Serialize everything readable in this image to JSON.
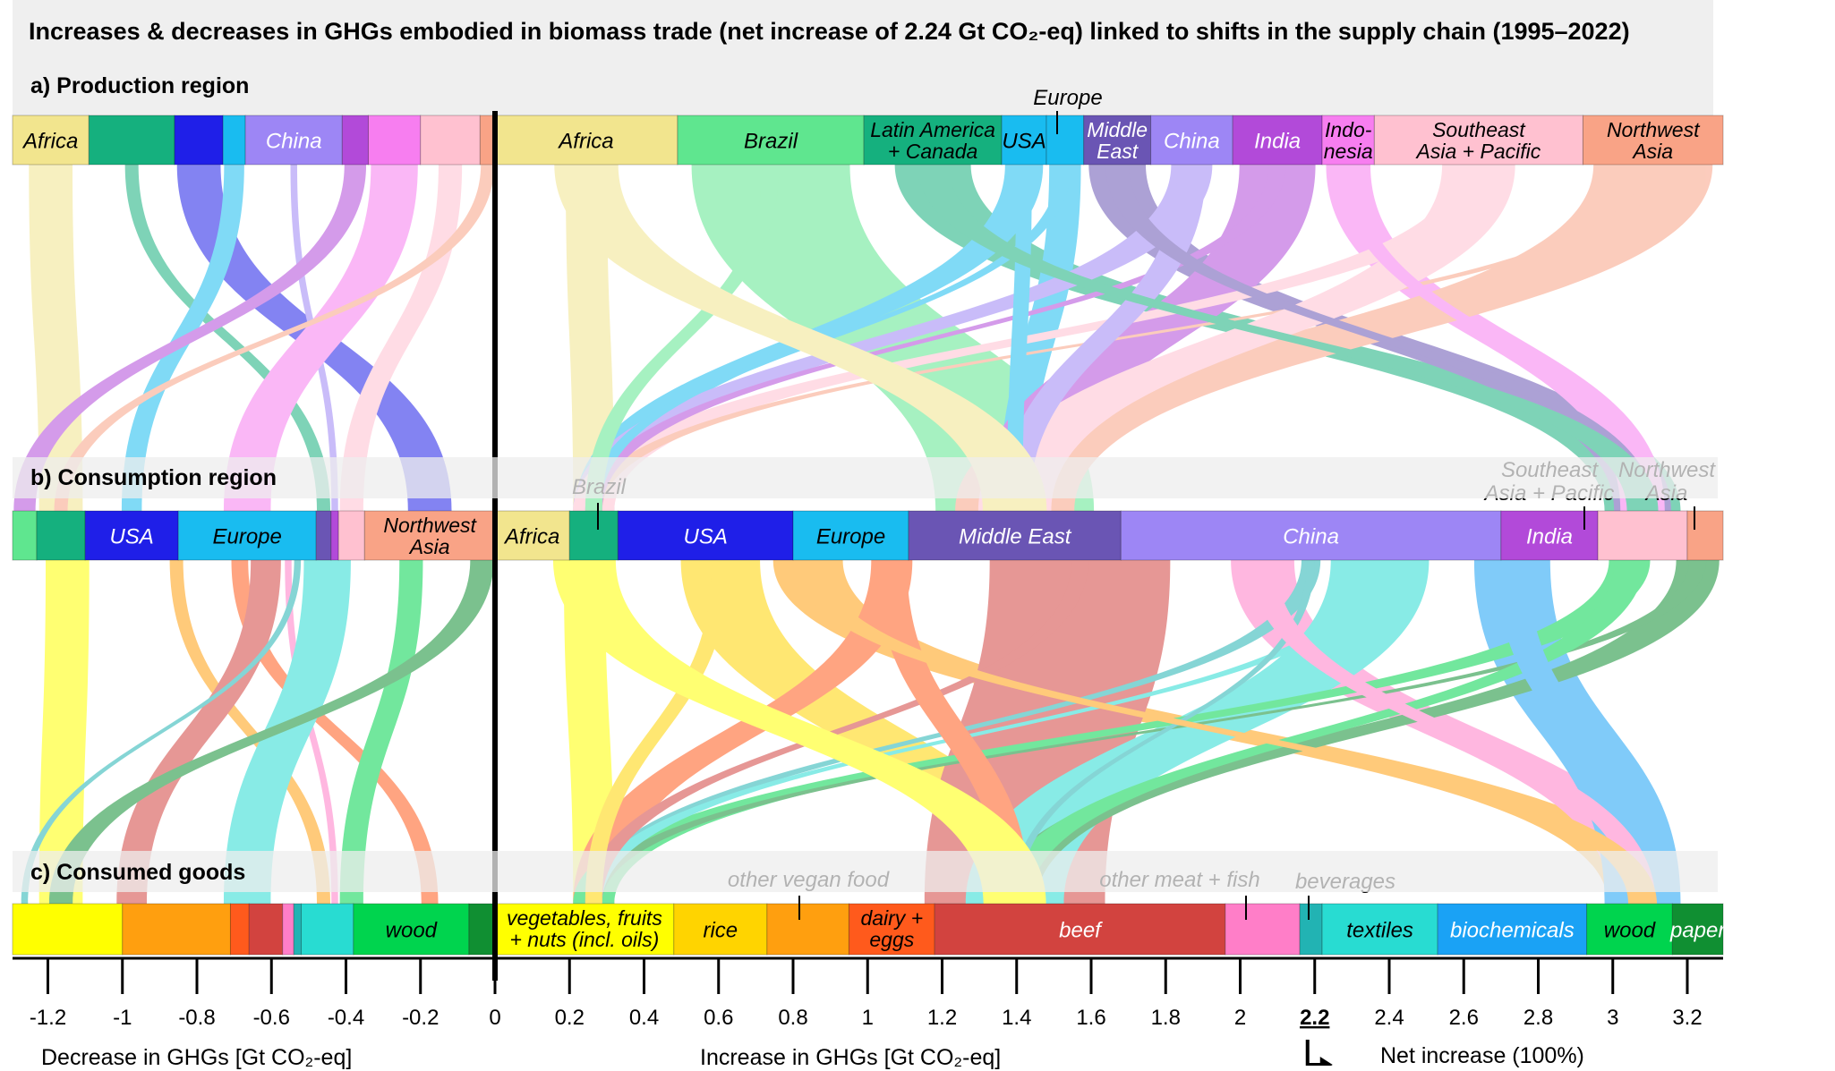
{
  "title": "Increases & decreases in GHGs embodied in biomass trade (net increase of 2.24 Gt CO₂-eq) linked to shifts in the supply chain (1995–2022)",
  "sections": {
    "a": "a) Production region",
    "b": "b) Consumption region",
    "c": "c) Consumed goods"
  },
  "axis": {
    "xlabel_left": "Decrease in GHGs [Gt CO₂-eq]",
    "xlabel_right": "Increase in GHGs [Gt CO₂-eq]",
    "net_label": "Net increase (100%)",
    "net_value": "2.2",
    "ticks": [
      "-1.2",
      "-1",
      "-0.8",
      "-0.6",
      "-0.4",
      "-0.2",
      "0",
      "0.2",
      "0.4",
      "0.6",
      "0.8",
      "1",
      "1.2",
      "1.4",
      "1.6",
      "1.8",
      "2",
      "2.2",
      "2.4",
      "2.6",
      "2.8",
      "3",
      "3.2"
    ],
    "tick_values": [
      -1.2,
      -1.0,
      -0.8,
      -0.6,
      -0.4,
      -0.2,
      0,
      0.2,
      0.4,
      0.6,
      0.8,
      1.0,
      1.2,
      1.4,
      1.6,
      1.8,
      2.0,
      2.2,
      2.4,
      2.6,
      2.8,
      3.0,
      3.2
    ],
    "range": [
      -1.3,
      3.33
    ]
  },
  "chart_data": {
    "type": "sankey",
    "title": "Increases & decreases in GHGs embodied in biomass trade (net increase of 2.24 Gt CO₂-eq) linked to shifts in the supply chain (1995–2022)",
    "units": "Gt CO₂-eq",
    "net_increase": 2.24,
    "production": {
      "decrease": [
        {
          "label": "Africa",
          "start": -1.3,
          "end": -1.09,
          "color": "#f2e58e"
        },
        {
          "label": "",
          "start": -1.09,
          "end": -0.86,
          "color": "#15b07e"
        },
        {
          "label": "",
          "start": -0.86,
          "end": -0.73,
          "color": "#1f1fe8"
        },
        {
          "label": "",
          "start": -0.73,
          "end": -0.67,
          "color": "#19bcf0"
        },
        {
          "label": "China",
          "start": -0.67,
          "end": -0.41,
          "color": "#9d86f5"
        },
        {
          "label": "",
          "start": -0.41,
          "end": -0.34,
          "color": "#b24ad9"
        },
        {
          "label": "",
          "start": -0.34,
          "end": -0.2,
          "color": "#f77ef0"
        },
        {
          "label": "",
          "start": -0.2,
          "end": -0.04,
          "color": "#ffc1d0"
        },
        {
          "label": "",
          "start": -0.04,
          "end": 0,
          "color": "#f9a386"
        }
      ],
      "increase": [
        {
          "label": "Africa",
          "start": 0,
          "end": 0.49,
          "color": "#f2e58e"
        },
        {
          "label": "Brazil",
          "start": 0.49,
          "end": 0.99,
          "color": "#5fe68f"
        },
        {
          "label": "Latin America + Canada",
          "start": 0.99,
          "end": 1.36,
          "color": "#15b07e"
        },
        {
          "label": "USA",
          "start": 1.36,
          "end": 1.48,
          "color": "#19bcf0"
        },
        {
          "label": "Europe",
          "start": 1.48,
          "end": 1.58,
          "color": "#19bcf0"
        },
        {
          "label": "Middle East",
          "start": 1.58,
          "end": 1.76,
          "color": "#6a55b4"
        },
        {
          "label": "China",
          "start": 1.76,
          "end": 1.98,
          "color": "#9d86f5"
        },
        {
          "label": "India",
          "start": 1.98,
          "end": 2.22,
          "color": "#b24ad9"
        },
        {
          "label": "Indo-nesia",
          "start": 2.22,
          "end": 2.36,
          "color": "#f77ef0"
        },
        {
          "label": "Southeast Asia + Pacific",
          "start": 2.36,
          "end": 2.92,
          "color": "#ffc1d0"
        },
        {
          "label": "Northwest Asia",
          "start": 2.92,
          "end": 3.33,
          "color": "#f9a386"
        }
      ]
    },
    "consumption": {
      "decrease": [
        {
          "label": "",
          "start": -1.3,
          "end": -1.23,
          "color": "#5fe68f"
        },
        {
          "label": "",
          "start": -1.23,
          "end": -1.1,
          "color": "#15b07e"
        },
        {
          "label": "USA",
          "start": -1.1,
          "end": -0.85,
          "color": "#1f1fe8"
        },
        {
          "label": "Europe",
          "start": -0.85,
          "end": -0.48,
          "color": "#19bcf0"
        },
        {
          "label": "",
          "start": -0.48,
          "end": -0.44,
          "color": "#6a55b4"
        },
        {
          "label": "",
          "start": -0.44,
          "end": -0.42,
          "color": "#b24ad9"
        },
        {
          "label": "",
          "start": -0.42,
          "end": -0.35,
          "color": "#ffc1d0"
        },
        {
          "label": "Northwest Asia",
          "start": -0.35,
          "end": 0,
          "color": "#f9a386"
        }
      ],
      "increase": [
        {
          "label": "Africa",
          "start": 0,
          "end": 0.2,
          "color": "#f2e58e"
        },
        {
          "label": "Brazil",
          "start": 0.2,
          "end": 0.33,
          "color": "#15b07e"
        },
        {
          "label": "USA",
          "start": 0.33,
          "end": 0.8,
          "color": "#1f1fe8"
        },
        {
          "label": "Europe",
          "start": 0.8,
          "end": 1.11,
          "color": "#19bcf0"
        },
        {
          "label": "Middle East",
          "start": 1.11,
          "end": 1.68,
          "color": "#6a55b4"
        },
        {
          "label": "China",
          "start": 1.68,
          "end": 2.7,
          "color": "#9d86f5"
        },
        {
          "label": "India",
          "start": 2.7,
          "end": 2.96,
          "color": "#b24ad9"
        },
        {
          "label": "Southeast Asia + Pacific",
          "start": 2.96,
          "end": 3.2,
          "color": "#ffc1d0"
        },
        {
          "label": "Northwest Asia",
          "start": 3.2,
          "end": 3.33,
          "color": "#f9a386"
        }
      ]
    },
    "goods": {
      "decrease": [
        {
          "label": "",
          "start": -1.3,
          "end": -1.0,
          "color": "#ffff00"
        },
        {
          "label": "",
          "start": -1.0,
          "end": -0.71,
          "color": "#ff9f0f"
        },
        {
          "label": "",
          "start": -0.71,
          "end": -0.66,
          "color": "#ff5a1c"
        },
        {
          "label": "",
          "start": -0.66,
          "end": -0.57,
          "color": "#d2433f"
        },
        {
          "label": "",
          "start": -0.57,
          "end": -0.54,
          "color": "#ff7ec8"
        },
        {
          "label": "",
          "start": -0.54,
          "end": -0.52,
          "color": "#22b3b3"
        },
        {
          "label": "",
          "start": -0.52,
          "end": -0.38,
          "color": "#28dcd2"
        },
        {
          "label": "wood",
          "start": -0.38,
          "end": -0.07,
          "color": "#00d44e"
        },
        {
          "label": "",
          "start": -0.07,
          "end": 0,
          "color": "#108f32"
        }
      ],
      "increase": [
        {
          "label": "vegetables, fruits + nuts (incl. oils)",
          "start": 0,
          "end": 0.48,
          "color": "#ffff00"
        },
        {
          "label": "rice",
          "start": 0.48,
          "end": 0.73,
          "color": "#ffd400"
        },
        {
          "label": "other vegan food",
          "start": 0.73,
          "end": 0.95,
          "color": "#ff9f0f"
        },
        {
          "label": "dairy + eggs",
          "start": 0.95,
          "end": 1.18,
          "color": "#ff5a1c"
        },
        {
          "label": "beef",
          "start": 1.18,
          "end": 1.96,
          "color": "#d2433f"
        },
        {
          "label": "other meat + fish",
          "start": 1.96,
          "end": 2.16,
          "color": "#ff7ec8"
        },
        {
          "label": "beverages",
          "start": 2.16,
          "end": 2.22,
          "color": "#22b3b3"
        },
        {
          "label": "textiles",
          "start": 2.22,
          "end": 2.53,
          "color": "#28dcd2"
        },
        {
          "label": "biochemicals",
          "start": 2.53,
          "end": 2.93,
          "color": "#1aa2f5"
        },
        {
          "label": "wood",
          "start": 2.93,
          "end": 3.16,
          "color": "#00d44e"
        },
        {
          "label": "paper",
          "start": 3.16,
          "end": 3.33,
          "color": "#108f32"
        }
      ]
    },
    "callouts": [
      {
        "label": "Europe",
        "row": "production"
      },
      {
        "label": "Brazil",
        "row": "consumption"
      },
      {
        "label": "Southeast Asia + Pacific",
        "row": "consumption"
      },
      {
        "label": "Northwest Asia",
        "row": "consumption"
      },
      {
        "label": "other vegan food",
        "row": "goods"
      },
      {
        "label": "other meat + fish",
        "row": "goods"
      },
      {
        "label": "beverages",
        "row": "goods"
      }
    ]
  }
}
